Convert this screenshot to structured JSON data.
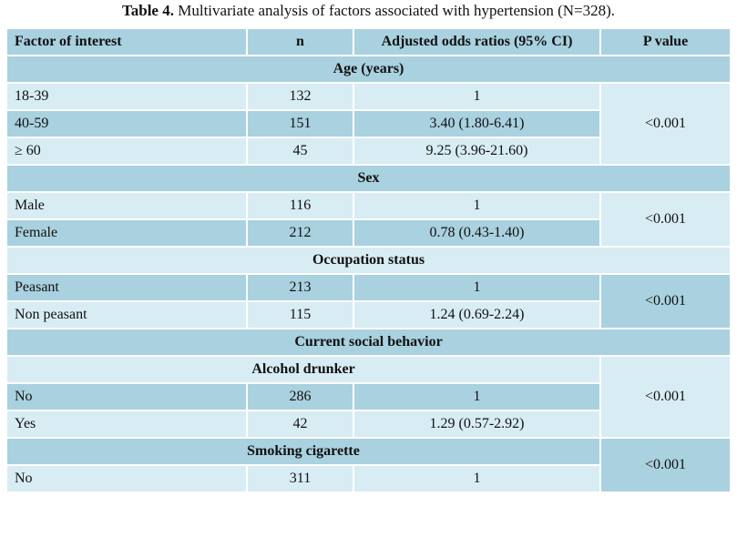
{
  "caption": {
    "label": "Table 4.",
    "text": "Multivariate analysis of factors associated with hypertension (N=328)."
  },
  "headers": {
    "factor": "Factor of interest",
    "n": "n",
    "or": "Adjusted odds ratios (95% CI)",
    "p": "P value"
  },
  "age": {
    "title": "Age (years)",
    "rows": [
      {
        "factor": "18-39",
        "n": "132",
        "or": "1"
      },
      {
        "factor": "40-59",
        "n": "151",
        "or": "3.40 (1.80-6.41)"
      },
      {
        "factor": "≥ 60",
        "n": "45",
        "or": "9.25 (3.96-21.60)"
      }
    ],
    "p": "<0.001"
  },
  "sex": {
    "title": "Sex",
    "rows": [
      {
        "factor": "Male",
        "n": "116",
        "or": "1"
      },
      {
        "factor": "Female",
        "n": "212",
        "or": "0.78 (0.43-1.40)"
      }
    ],
    "p": "<0.001"
  },
  "occupation": {
    "title": "Occupation status",
    "rows": [
      {
        "factor": "Peasant",
        "n": "213",
        "or": "1"
      },
      {
        "factor": "Non peasant",
        "n": "115",
        "or": "1.24 (0.69-2.24)"
      }
    ],
    "p": "<0.001"
  },
  "social": {
    "title": "Current social behavior",
    "alcohol": {
      "title": "Alcohol drunker",
      "rows": [
        {
          "factor": "No",
          "n": "286",
          "or": "1"
        },
        {
          "factor": "Yes",
          "n": "42",
          "or": "1.29 (0.57-2.92)"
        }
      ],
      "p": "<0.001"
    },
    "smoking": {
      "title": "Smoking cigarette",
      "rows": [
        {
          "factor": "No",
          "n": "311",
          "or": "1"
        }
      ],
      "p": "<0.001"
    }
  },
  "colors": {
    "dark": "#a9d1df",
    "light": "#d8ecf3"
  }
}
